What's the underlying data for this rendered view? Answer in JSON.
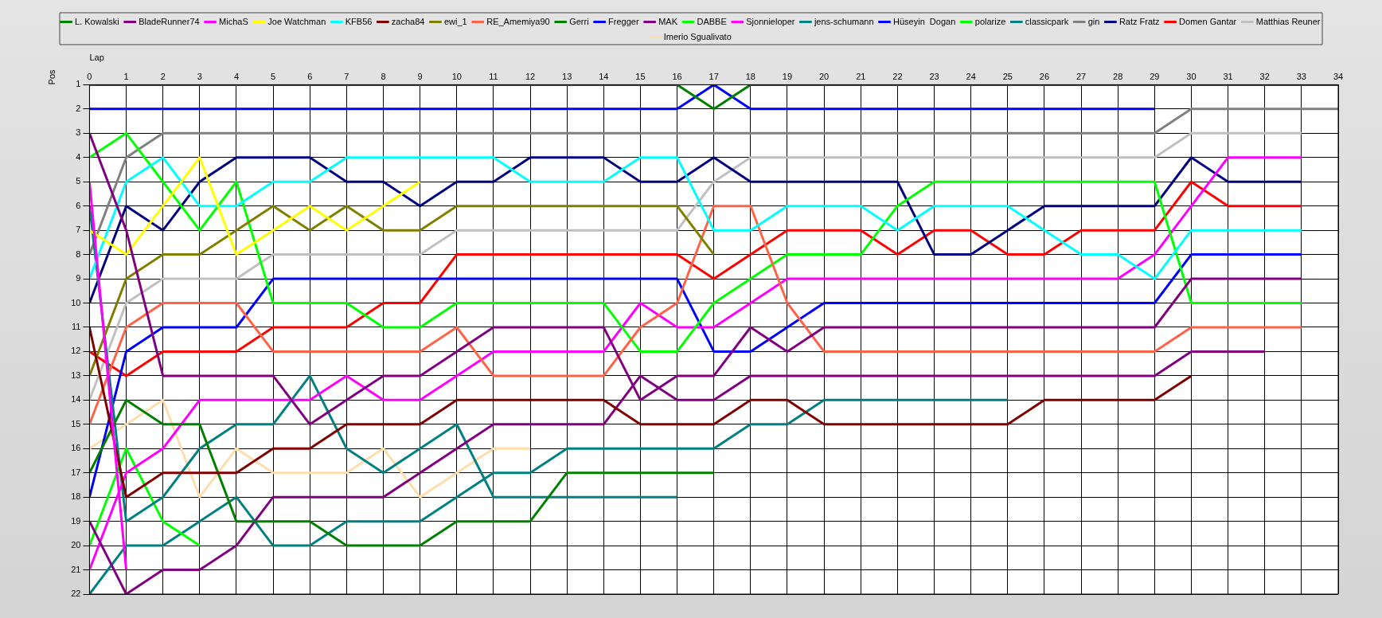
{
  "chart_data": {
    "type": "line",
    "xlabel": "Lap",
    "ylabel": "Pos",
    "x": [
      0,
      1,
      2,
      3,
      4,
      5,
      6,
      7,
      8,
      9,
      10,
      11,
      12,
      13,
      14,
      15,
      16,
      17,
      18,
      19,
      20,
      21,
      22,
      23,
      24,
      25,
      26,
      27,
      28,
      29,
      30,
      31,
      32,
      33,
      34
    ],
    "xlim": [
      0,
      34
    ],
    "xticks": [
      0,
      1,
      2,
      3,
      4,
      5,
      6,
      7,
      8,
      9,
      10,
      11,
      12,
      13,
      14,
      15,
      16,
      17,
      18,
      19,
      20,
      21,
      22,
      23,
      24,
      25,
      26,
      27,
      28,
      29,
      30,
      31,
      32,
      33,
      34
    ],
    "ylim": [
      22,
      1
    ],
    "yticks": [
      1,
      2,
      3,
      4,
      5,
      6,
      7,
      8,
      9,
      10,
      11,
      12,
      13,
      14,
      15,
      16,
      17,
      18,
      19,
      20,
      21,
      22
    ],
    "grid": true,
    "legend": "top",
    "marker": "none",
    "series": [
      {
        "name": "L. Kowalski",
        "color": "#008000",
        "values": [
          1,
          1,
          1,
          1,
          1,
          1,
          1,
          1,
          1,
          1,
          1,
          1,
          1,
          1,
          1,
          1,
          1,
          2,
          1,
          1,
          1,
          1,
          1,
          1,
          1,
          1,
          1,
          1,
          1,
          1,
          1,
          1,
          1,
          1,
          1
        ]
      },
      {
        "name": "BladeRunner74",
        "color": "#800080",
        "values": [
          3,
          7,
          13,
          13,
          13,
          13,
          15,
          14,
          13,
          13,
          12,
          11,
          11,
          11,
          11,
          14,
          13,
          13,
          11,
          12,
          11,
          11,
          11,
          11,
          11,
          11,
          11,
          11,
          11,
          11,
          9,
          9,
          9,
          9,
          null
        ]
      },
      {
        "name": "MichaS",
        "color": "#ff00ff",
        "values": [
          5,
          21,
          null,
          null,
          null,
          null,
          null,
          null,
          null,
          null,
          null,
          null,
          null,
          null,
          null,
          null,
          null,
          null,
          null,
          null,
          null,
          null,
          null,
          null,
          null,
          null,
          null,
          null,
          null,
          null,
          null,
          null,
          null,
          null,
          null
        ]
      },
      {
        "name": "Joe Watchman",
        "color": "#ffff00",
        "values": [
          7,
          8,
          6,
          4,
          8,
          7,
          6,
          7,
          6,
          5,
          null,
          null,
          null,
          null,
          null,
          null,
          null,
          null,
          null,
          null,
          null,
          null,
          null,
          null,
          null,
          null,
          null,
          null,
          null,
          null,
          null,
          null,
          null,
          null,
          null
        ]
      },
      {
        "name": "KFB56",
        "color": "#00ffff",
        "values": [
          9,
          5,
          4,
          6,
          6,
          5,
          5,
          4,
          4,
          4,
          4,
          4,
          5,
          5,
          5,
          4,
          4,
          7,
          7,
          6,
          6,
          6,
          7,
          6,
          6,
          6,
          7,
          8,
          8,
          9,
          7,
          7,
          7,
          7,
          null
        ]
      },
      {
        "name": "zacha84",
        "color": "#800000",
        "values": [
          11,
          18,
          17,
          17,
          17,
          16,
          16,
          15,
          15,
          15,
          14,
          14,
          14,
          14,
          14,
          15,
          15,
          15,
          14,
          14,
          15,
          15,
          15,
          15,
          15,
          15,
          14,
          14,
          14,
          14,
          13,
          null,
          null,
          null,
          null
        ]
      },
      {
        "name": "ewi_1",
        "color": "#808000",
        "values": [
          13,
          9,
          8,
          8,
          7,
          6,
          7,
          6,
          7,
          7,
          6,
          6,
          6,
          6,
          6,
          6,
          6,
          8,
          null,
          null,
          null,
          null,
          null,
          null,
          null,
          null,
          null,
          null,
          null,
          null,
          null,
          null,
          null,
          null,
          null
        ]
      },
      {
        "name": "RE_Amemiya90",
        "color": "#ff6347",
        "values": [
          15,
          11,
          10,
          10,
          10,
          12,
          12,
          12,
          12,
          12,
          11,
          13,
          13,
          13,
          13,
          11,
          10,
          6,
          6,
          10,
          12,
          12,
          12,
          12,
          12,
          12,
          12,
          12,
          12,
          12,
          11,
          11,
          11,
          11,
          null
        ]
      },
      {
        "name": "Gerri",
        "color": "#008000",
        "values": [
          17,
          14,
          15,
          15,
          19,
          19,
          19,
          20,
          20,
          20,
          19,
          19,
          19,
          17,
          17,
          17,
          17,
          17,
          null,
          null,
          null,
          null,
          null,
          null,
          null,
          null,
          null,
          null,
          null,
          null,
          null,
          null,
          null,
          null,
          null
        ]
      },
      {
        "name": "Fregger",
        "color": "#0000ff",
        "values": [
          2,
          2,
          2,
          2,
          2,
          2,
          2,
          2,
          2,
          2,
          2,
          2,
          2,
          2,
          2,
          2,
          2,
          1,
          2,
          2,
          2,
          2,
          2,
          2,
          2,
          2,
          2,
          2,
          2,
          2,
          null,
          null,
          null,
          null,
          null
        ]
      },
      {
        "name": "MAK",
        "color": "#800080",
        "values": [
          19,
          22,
          21,
          21,
          20,
          18,
          18,
          18,
          18,
          17,
          16,
          15,
          15,
          15,
          15,
          13,
          14,
          14,
          13,
          13,
          13,
          13,
          13,
          13,
          13,
          13,
          13,
          13,
          13,
          13,
          12,
          12,
          12,
          null,
          null
        ]
      },
      {
        "name": "DABBE",
        "color": "#00ff00",
        "values": [
          4,
          3,
          5,
          7,
          5,
          10,
          10,
          10,
          11,
          11,
          10,
          10,
          10,
          10,
          10,
          12,
          12,
          10,
          9,
          8,
          8,
          8,
          6,
          5,
          5,
          5,
          5,
          5,
          5,
          5,
          10,
          10,
          10,
          10,
          null
        ]
      },
      {
        "name": "Sjonnieloper",
        "color": "#ff00ff",
        "values": [
          21,
          17,
          16,
          14,
          14,
          14,
          14,
          13,
          14,
          14,
          13,
          12,
          12,
          12,
          12,
          10,
          11,
          11,
          10,
          9,
          9,
          9,
          9,
          9,
          9,
          9,
          9,
          9,
          9,
          8,
          6,
          4,
          4,
          4,
          null
        ]
      },
      {
        "name": "jens-schumann",
        "color": "#008080",
        "values": [
          6,
          19,
          18,
          16,
          15,
          15,
          13,
          16,
          17,
          16,
          15,
          18,
          18,
          18,
          18,
          18,
          18,
          null,
          null,
          null,
          null,
          null,
          null,
          null,
          null,
          null,
          null,
          null,
          null,
          null,
          null,
          null,
          null,
          null,
          null
        ]
      },
      {
        "name": "Hüseyin  Dogan",
        "color": "#0000ff",
        "values": [
          18,
          12,
          11,
          11,
          11,
          9,
          9,
          9,
          9,
          9,
          9,
          9,
          9,
          9,
          9,
          9,
          9,
          12,
          12,
          11,
          10,
          10,
          10,
          10,
          10,
          10,
          10,
          10,
          10,
          10,
          8,
          8,
          8,
          8,
          null
        ]
      },
      {
        "name": "polarize",
        "color": "#00ff00",
        "values": [
          20,
          16,
          19,
          20,
          null,
          null,
          null,
          null,
          null,
          null,
          null,
          null,
          null,
          null,
          null,
          null,
          null,
          null,
          null,
          null,
          null,
          null,
          null,
          null,
          null,
          null,
          null,
          null,
          null,
          null,
          null,
          null,
          null,
          null,
          null
        ]
      },
      {
        "name": "classicpark",
        "color": "#008080",
        "values": [
          22,
          20,
          20,
          19,
          18,
          20,
          20,
          19,
          19,
          19,
          18,
          17,
          17,
          16,
          16,
          16,
          16,
          16,
          15,
          15,
          14,
          14,
          14,
          14,
          14,
          14,
          null,
          null,
          null,
          null,
          null,
          null,
          null,
          null,
          null
        ]
      },
      {
        "name": "gin",
        "color": "#808080",
        "values": [
          8,
          4,
          3,
          3,
          3,
          3,
          3,
          3,
          3,
          3,
          3,
          3,
          3,
          3,
          3,
          3,
          3,
          3,
          3,
          3,
          3,
          3,
          3,
          3,
          3,
          3,
          3,
          3,
          3,
          3,
          2,
          2,
          2,
          2,
          2
        ]
      },
      {
        "name": "Ratz Fratz",
        "color": "#000080",
        "values": [
          10,
          6,
          7,
          5,
          4,
          4,
          4,
          5,
          5,
          6,
          5,
          5,
          4,
          4,
          4,
          5,
          5,
          4,
          5,
          5,
          5,
          5,
          5,
          8,
          8,
          7,
          6,
          6,
          6,
          6,
          4,
          5,
          5,
          5,
          null
        ]
      },
      {
        "name": "Domen Gantar",
        "color": "#ff0000",
        "values": [
          12,
          13,
          12,
          12,
          12,
          11,
          11,
          11,
          10,
          10,
          8,
          8,
          8,
          8,
          8,
          8,
          8,
          9,
          8,
          7,
          7,
          7,
          8,
          7,
          7,
          8,
          8,
          7,
          7,
          7,
          5,
          6,
          6,
          6,
          null
        ]
      },
      {
        "name": "Matthias Reuner",
        "color": "#c0c0c0",
        "values": [
          14,
          10,
          9,
          9,
          9,
          8,
          8,
          8,
          8,
          8,
          7,
          7,
          7,
          7,
          7,
          7,
          7,
          5,
          4,
          4,
          4,
          4,
          4,
          4,
          4,
          4,
          4,
          4,
          4,
          4,
          3,
          3,
          3,
          3,
          null
        ]
      },
      {
        "name": "Imerio Sgualivato",
        "color": "#ffdead",
        "values": [
          16,
          15,
          14,
          18,
          16,
          17,
          17,
          17,
          16,
          18,
          17,
          16,
          16,
          null,
          null,
          null,
          null,
          null,
          null,
          null,
          null,
          null,
          null,
          null,
          null,
          null,
          null,
          null,
          null,
          null,
          null,
          null,
          null,
          null,
          null
        ]
      }
    ]
  }
}
